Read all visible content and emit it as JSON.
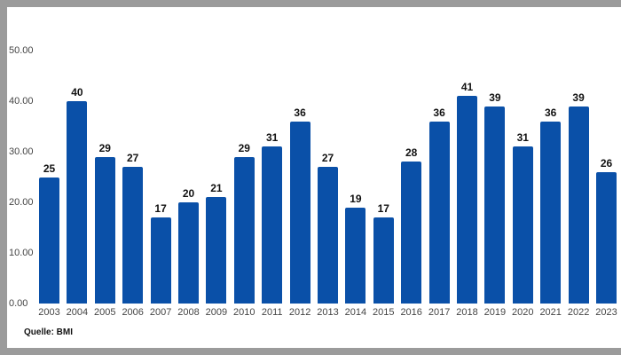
{
  "chart_data": {
    "type": "bar",
    "title": "",
    "xlabel": "",
    "ylabel": "",
    "ylim": [
      0,
      50
    ],
    "yticks": [
      "0.00",
      "10.00",
      "20.00",
      "30.00",
      "40.00",
      "50.00"
    ],
    "grid": false,
    "categories": [
      "2003",
      "2004",
      "2005",
      "2006",
      "2007",
      "2008",
      "2009",
      "2010",
      "2011",
      "2012",
      "2013",
      "2014",
      "2015",
      "2016",
      "2017",
      "2018",
      "2019",
      "2020",
      "2021",
      "2022",
      "2023"
    ],
    "values": [
      25,
      40,
      29,
      27,
      17,
      20,
      21,
      29,
      31,
      36,
      27,
      19,
      17,
      28,
      36,
      41,
      39,
      31,
      36,
      39,
      26
    ],
    "bar_color": "#0a50a8",
    "source": "Quelle: BMI"
  }
}
